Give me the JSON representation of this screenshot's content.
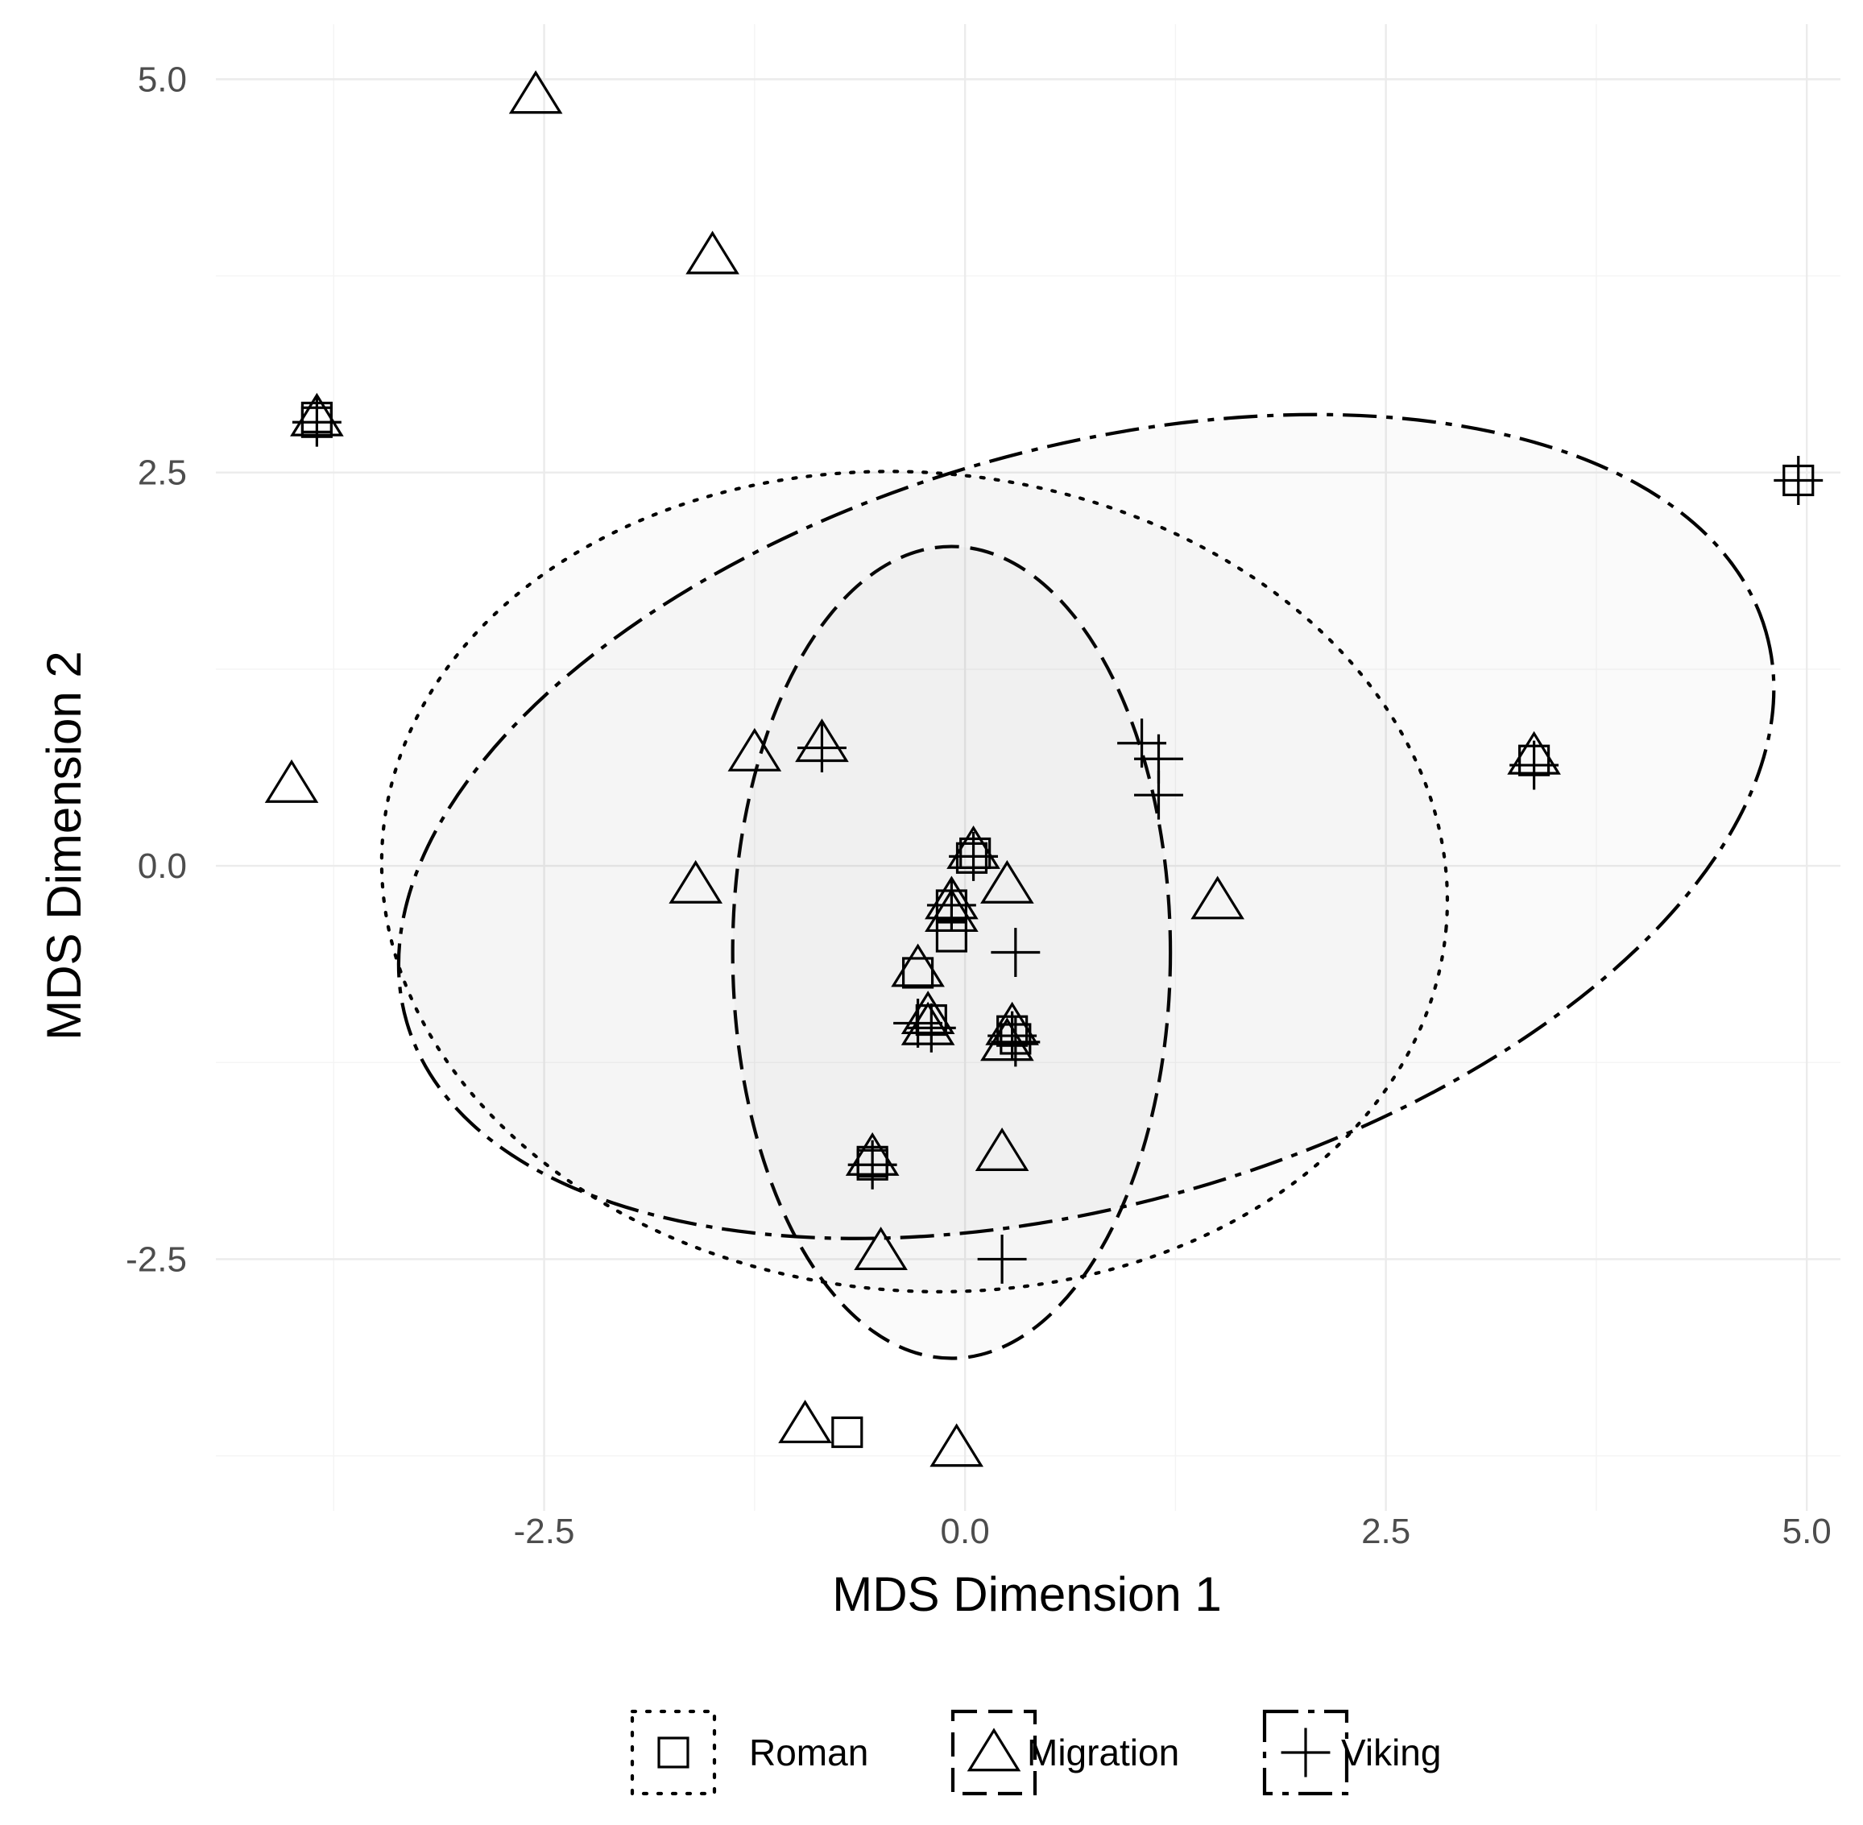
{
  "chart_data": {
    "type": "scatter",
    "title": "",
    "xlabel": "MDS Dimension 1",
    "ylabel": "MDS Dimension 2",
    "xlim": [
      -4.45,
      5.2
    ],
    "ylim": [
      -4.1,
      5.35
    ],
    "x_ticks": [
      -2.5,
      0.0,
      2.5,
      5.0
    ],
    "x_tick_labels": [
      "-2.5",
      "0.0",
      "2.5",
      "5.0"
    ],
    "y_ticks": [
      -2.5,
      0.0,
      2.5,
      5.0
    ],
    "y_tick_labels": [
      "-2.5",
      "0.0",
      "2.5",
      "5.0"
    ],
    "grid": true,
    "legend_position": "bottom",
    "series": [
      {
        "name": "Roman",
        "marker": "square",
        "ellipse_style": "dotted",
        "ellipse": {
          "cx": -0.3,
          "cy": -0.1,
          "rx": 3.17,
          "ry": 2.6,
          "angle_deg": -5
        },
        "points": [
          {
            "x": -3.85,
            "y": 2.85
          },
          {
            "x": -3.85,
            "y": 2.82
          },
          {
            "x": 0.06,
            "y": 0.08
          },
          {
            "x": 0.04,
            "y": 0.05
          },
          {
            "x": -0.08,
            "y": -0.25
          },
          {
            "x": -0.08,
            "y": -0.45
          },
          {
            "x": -0.28,
            "y": -0.68
          },
          {
            "x": -0.2,
            "y": -0.98
          },
          {
            "x": 0.28,
            "y": -1.05
          },
          {
            "x": 0.3,
            "y": -1.1
          },
          {
            "x": -0.55,
            "y": -1.88
          },
          {
            "x": -0.55,
            "y": -1.9
          },
          {
            "x": 3.38,
            "y": 0.67
          },
          {
            "x": 4.95,
            "y": 2.45
          },
          {
            "x": -0.7,
            "y": -3.6
          }
        ]
      },
      {
        "name": "Migration",
        "marker": "triangle",
        "ellipse_style": "dashed",
        "ellipse": {
          "cx": -0.08,
          "cy": -0.55,
          "rx": 1.3,
          "ry": 2.58,
          "angle_deg": 0
        },
        "points": [
          {
            "x": -2.55,
            "y": 4.9
          },
          {
            "x": -1.5,
            "y": 3.88
          },
          {
            "x": -3.85,
            "y": 2.85
          },
          {
            "x": -4.0,
            "y": 0.52
          },
          {
            "x": -1.25,
            "y": 0.72
          },
          {
            "x": -0.85,
            "y": 0.78
          },
          {
            "x": -1.6,
            "y": -0.12
          },
          {
            "x": 0.05,
            "y": 0.1
          },
          {
            "x": 0.25,
            "y": -0.12
          },
          {
            "x": -0.08,
            "y": -0.22
          },
          {
            "x": -0.08,
            "y": -0.3
          },
          {
            "x": -0.28,
            "y": -0.65
          },
          {
            "x": -0.22,
            "y": -0.95
          },
          {
            "x": -0.22,
            "y": -1.02
          },
          {
            "x": 0.28,
            "y": -1.02
          },
          {
            "x": 0.25,
            "y": -1.12
          },
          {
            "x": 1.5,
            "y": -0.22
          },
          {
            "x": -0.55,
            "y": -1.85
          },
          {
            "x": 0.22,
            "y": -1.82
          },
          {
            "x": -0.5,
            "y": -2.45
          },
          {
            "x": -0.95,
            "y": -3.55
          },
          {
            "x": -0.05,
            "y": -3.7
          },
          {
            "x": 3.38,
            "y": 0.7
          }
        ]
      },
      {
        "name": "Viking",
        "marker": "plus",
        "ellipse_style": "longdash",
        "ellipse": {
          "cx": 0.72,
          "cy": 0.25,
          "rx": 4.2,
          "ry": 2.4,
          "angle_deg": 16
        },
        "points": [
          {
            "x": -3.85,
            "y": 2.82
          },
          {
            "x": -0.85,
            "y": 0.75
          },
          {
            "x": 1.05,
            "y": 0.78
          },
          {
            "x": 1.15,
            "y": 0.68
          },
          {
            "x": 1.15,
            "y": 0.45
          },
          {
            "x": 0.05,
            "y": 0.06
          },
          {
            "x": -0.08,
            "y": -0.25
          },
          {
            "x": 0.3,
            "y": -0.55
          },
          {
            "x": -0.28,
            "y": -1.0
          },
          {
            "x": -0.2,
            "y": -1.03
          },
          {
            "x": 0.28,
            "y": -1.08
          },
          {
            "x": 0.3,
            "y": -1.12
          },
          {
            "x": -0.55,
            "y": -1.9
          },
          {
            "x": 0.22,
            "y": -2.5
          },
          {
            "x": 3.38,
            "y": 0.64
          },
          {
            "x": 4.95,
            "y": 2.45
          }
        ]
      }
    ]
  }
}
